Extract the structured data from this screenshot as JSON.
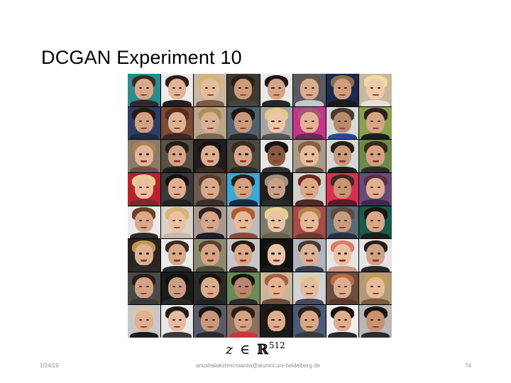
{
  "slide": {
    "title": "DCGAN Experiment 10",
    "formula": {
      "variable": "z",
      "relation": "∈",
      "set": "ℝ",
      "exponent": "512"
    },
    "footer": {
      "date": "1/24/19",
      "email": "anushalakshmi.manila@alumni.uni-heidelberg.de",
      "page_number": "74"
    }
  },
  "face_grid": {
    "rows": 8,
    "columns": 8,
    "tiles": [
      {
        "bg": "#2e8a8f",
        "skin": "#d9a88a",
        "hair": "#3a2a22",
        "shirt": "#2b2b2b"
      },
      {
        "bg": "#ececec",
        "skin": "#e2b596",
        "hair": "#2a1e18",
        "shirt": "#1f1f1f"
      },
      {
        "bg": "#c9b7a0",
        "skin": "#e6bd9c",
        "hair": "#d8b36a",
        "shirt": "#7a5a45"
      },
      {
        "bg": "#3b3b2f",
        "skin": "#cf9a7a",
        "hair": "#2a2018",
        "shirt": "#444444"
      },
      {
        "bg": "#e9e9e9",
        "skin": "#d5a486",
        "hair": "#1a1412",
        "shirt": "#262626"
      },
      {
        "bg": "#5a5a66",
        "skin": "#d9ad90",
        "hair": "#6b5646",
        "shirt": "#c8c8c8"
      },
      {
        "bg": "#1c2a4a",
        "skin": "#d29d7d",
        "hair": "#8a7050",
        "shirt": "#1a1a1a"
      },
      {
        "bg": "#c6b79f",
        "skin": "#efcaa8",
        "hair": "#f0dca0",
        "shirt": "#e8e0d0"
      },
      {
        "bg": "#2c3e66",
        "skin": "#d4a080",
        "hair": "#241a16",
        "shirt": "#1f2a44"
      },
      {
        "bg": "#7a4a36",
        "skin": "#e0b292",
        "hair": "#5a2c20",
        "shirt": "#3a2a24"
      },
      {
        "bg": "#b9a68a",
        "skin": "#d9b090",
        "hair": "#b08a5a",
        "shirt": "#7a6a55"
      },
      {
        "bg": "#50606e",
        "skin": "#c99a7c",
        "hair": "#1c1614",
        "shirt": "#2c2c2c"
      },
      {
        "bg": "#a3a3a3",
        "skin": "#ecc7a6",
        "hair": "#e3c98a",
        "shirt": "#555555"
      },
      {
        "bg": "#c7348a",
        "skin": "#e3b394",
        "hair": "#a05a7a",
        "shirt": "#6a2a5a"
      },
      {
        "bg": "#d8d8d8",
        "skin": "#b98a6c",
        "hair": "#4a3a30",
        "shirt": "#2a4a8a"
      },
      {
        "bg": "#88a050",
        "skin": "#d6a585",
        "hair": "#2a2018",
        "shirt": "#1c1c1c"
      },
      {
        "bg": "#8a7a66",
        "skin": "#e3b596",
        "hair": "#a88258",
        "shirt": "#6a5040"
      },
      {
        "bg": "#5a5048",
        "skin": "#d5a586",
        "hair": "#241c18",
        "shirt": "#1e1e1e"
      },
      {
        "bg": "#1e1e1e",
        "skin": "#dcae8e",
        "hair": "#1a1210",
        "shirt": "#3a2a22"
      },
      {
        "bg": "#4a4a40",
        "skin": "#d8a688",
        "hair": "#3a2c22",
        "shirt": "#2a2a2a"
      },
      {
        "bg": "#e6e6e6",
        "skin": "#8a5a40",
        "hair": "#1a1210",
        "shirt": "#2e2e2e"
      },
      {
        "bg": "#a89a88",
        "skin": "#e6bd9c",
        "hair": "#8a6040",
        "shirt": "#5a4a3a"
      },
      {
        "bg": "#d7d7d7",
        "skin": "#c99a7a",
        "hair": "#2a1c16",
        "shirt": "#1c1c1c"
      },
      {
        "bg": "#6a8a4a",
        "skin": "#d6a282",
        "hair": "#3a2818",
        "shirt": "#2a2a2a"
      },
      {
        "bg": "#b8242c",
        "skin": "#e8c0a0",
        "hair": "#e6cc90",
        "shirt": "#7a2a2a"
      },
      {
        "bg": "#3a3a3a",
        "skin": "#e0b090",
        "hair": "#141010",
        "shirt": "#222222"
      },
      {
        "bg": "#6a5a50",
        "skin": "#d9aa8a",
        "hair": "#5a3a2a",
        "shirt": "#3a2e28"
      },
      {
        "bg": "#3aa8d8",
        "skin": "#d4a080",
        "hair": "#2a1e18",
        "shirt": "#1a2a44"
      },
      {
        "bg": "#1e1e1e",
        "skin": "#c8a088",
        "hair": "#a09080",
        "shirt": "#2a2a2a"
      },
      {
        "bg": "#d0d0d0",
        "skin": "#dca888",
        "hair": "#6a2a1c",
        "shirt": "#4a2a22"
      },
      {
        "bg": "#d83050",
        "skin": "#ca9474",
        "hair": "#3a2a22",
        "shirt": "#5a1a2a"
      },
      {
        "bg": "#6a4a7a",
        "skin": "#dfb091",
        "hair": "#5a3040",
        "shirt": "#3a2a4a"
      },
      {
        "bg": "#eaeaea",
        "skin": "#dba98a",
        "hair": "#6a4028",
        "shirt": "#2a2a2a"
      },
      {
        "bg": "#d9d2c8",
        "skin": "#eac2a2",
        "hair": "#d8b478",
        "shirt": "#c8b8a8"
      },
      {
        "bg": "#a89a90",
        "skin": "#d6a688",
        "hair": "#2a2220",
        "shirt": "#1e1e2a"
      },
      {
        "bg": "#bcbcbc",
        "skin": "#e8bb98",
        "hair": "#b05a30",
        "shirt": "#8a4a3a"
      },
      {
        "bg": "#7a7a68",
        "skin": "#e8c4a4",
        "hair": "#e8d090",
        "shirt": "#6a6050"
      },
      {
        "bg": "#a84a4a",
        "skin": "#e4b898",
        "hair": "#b0844a",
        "shirt": "#6a3a2a"
      },
      {
        "bg": "#5a6a78",
        "skin": "#c99c80",
        "hair": "#5a4a40",
        "shirt": "#2a3040"
      },
      {
        "bg": "#1a5a4a",
        "skin": "#d8a888",
        "hair": "#1a1410",
        "shirt": "#1e1e1e"
      },
      {
        "bg": "#2a2520",
        "skin": "#dcb090",
        "hair": "#c0984a",
        "shirt": "#2a2a2a"
      },
      {
        "bg": "#ececec",
        "skin": "#d8a888",
        "hair": "#3a2a20",
        "shirt": "#2a2a2a"
      },
      {
        "bg": "#8a8a70",
        "skin": "#d4a484",
        "hair": "#5a4030",
        "shirt": "#4a4a3a"
      },
      {
        "bg": "#c8c8c8",
        "skin": "#dda888",
        "hair": "#2a1a14",
        "shirt": "#3a2a2a"
      },
      {
        "bg": "#101010",
        "skin": "#e8c4a8",
        "hair": "#1a1416",
        "shirt": "#1a1a1a"
      },
      {
        "bg": "#b0b4c0",
        "skin": "#dcb094",
        "hair": "#4a3a30",
        "shirt": "#3a3a4a"
      },
      {
        "bg": "#e6e6e6",
        "skin": "#ecc0a0",
        "hair": "#e07a68",
        "shirt": "#c89a8a"
      },
      {
        "bg": "#e4e4e4",
        "skin": "#d2a284",
        "hair": "#241a16",
        "shirt": "#2a2a2a"
      },
      {
        "bg": "#4a4a48",
        "skin": "#d4a282",
        "hair": "#2a1e18",
        "shirt": "#3a3a3a"
      },
      {
        "bg": "#1c1c1c",
        "skin": "#caa082",
        "hair": "#101010",
        "shirt": "#2a2a2a"
      },
      {
        "bg": "#2a2a2a",
        "skin": "#d9ac8c",
        "hair": "#1a1410",
        "shirt": "#222222"
      },
      {
        "bg": "#6a8a5a",
        "skin": "#b8866a",
        "hair": "#1a1410",
        "shirt": "#2a2a2a"
      },
      {
        "bg": "#c8b89a",
        "skin": "#e3b392",
        "hair": "#a8603a",
        "shirt": "#6a4a3a"
      },
      {
        "bg": "#d0d4d8",
        "skin": "#e2bc9e",
        "hair": "#e0d0a0",
        "shirt": "#4a4a5a"
      },
      {
        "bg": "#6a4e40",
        "skin": "#dcae90",
        "hair": "#c06a40",
        "shirt": "#5a3a2a"
      },
      {
        "bg": "#b09a7a",
        "skin": "#e6bc9a",
        "hair": "#c89a5a",
        "shirt": "#7a5a40"
      },
      {
        "bg": "#c8c8c8",
        "skin": "#e0b092",
        "hair": "#d8c8b0",
        "shirt": "#1a1a1a"
      },
      {
        "bg": "#e8e8e8",
        "skin": "#e4bca0",
        "hair": "#241a16",
        "shirt": "#3a3a3a"
      },
      {
        "bg": "#5a5a6a",
        "skin": "#c89878",
        "hair": "#1a1410",
        "shirt": "#2a2a2a"
      },
      {
        "bg": "#8a7060",
        "skin": "#d4a282",
        "hair": "#2a1e18",
        "shirt": "#c8343a"
      },
      {
        "bg": "#1a1a1a",
        "skin": "#dcae8e",
        "hair": "#1a1410",
        "shirt": "#1a1a1a"
      },
      {
        "bg": "#4a5a7a",
        "skin": "#d9a888",
        "hair": "#2a2018",
        "shirt": "#3a3a3a"
      },
      {
        "bg": "#eeeeee",
        "skin": "#dcae8e",
        "hair": "#181212",
        "shirt": "#2a2a2a"
      },
      {
        "bg": "#b8b8b8",
        "skin": "#c89272",
        "hair": "#1a1210",
        "shirt": "#2a2a2a"
      }
    ]
  }
}
